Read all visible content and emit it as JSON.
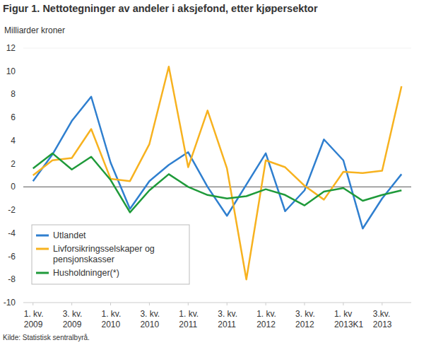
{
  "chart_data": {
    "type": "line",
    "title": "Figur 1. Nettotegninger av andeler i aksjefond, etter kjøpersektor",
    "y_label": "Milliarder kroner",
    "source": "Kilde: Statistisk sentralbyrå.",
    "categories": [
      "1. kv.\n2009",
      null,
      "3. kv.\n2009",
      null,
      "1. kv.\n2010",
      null,
      "3. kv.\n2010",
      null,
      "1. kv.\n2011",
      null,
      "3. kv.\n2011",
      null,
      "1. kv.\n2012",
      null,
      "3. kv.\n2012",
      null,
      "1. kv\n2013K1",
      null,
      "3.kv.\n2013",
      null
    ],
    "series": [
      {
        "name": "Utlandet",
        "color": "#2f7fcf",
        "values": [
          0.5,
          2.8,
          5.7,
          7.8,
          2.1,
          -1.9,
          0.5,
          1.9,
          3.0,
          0.0,
          -2.5,
          0.2,
          2.9,
          -2.1,
          -0.3,
          4.1,
          2.3,
          -3.6,
          -1.0,
          1.1
        ]
      },
      {
        "name": "Livforsikringsselskaper og\npensjonskasser",
        "color": "#f7b21f",
        "values": [
          1.0,
          2.3,
          2.5,
          5.0,
          0.7,
          0.5,
          3.7,
          10.4,
          1.7,
          6.6,
          1.6,
          -8.0,
          2.3,
          1.7,
          0.1,
          -1.1,
          1.3,
          1.2,
          1.4,
          8.7
        ]
      },
      {
        "name": "Husholdninger(*)",
        "color": "#1f9a3a",
        "values": [
          1.6,
          2.9,
          1.5,
          2.6,
          0.6,
          -2.2,
          -0.3,
          1.1,
          0.0,
          -0.7,
          -1.0,
          -0.8,
          -0.2,
          -0.7,
          -1.6,
          -0.4,
          -0.1,
          -1.2,
          -0.7,
          -0.3
        ]
      }
    ],
    "ylim": [
      -10,
      12
    ],
    "yticks": [
      -10,
      -8,
      -6,
      -4,
      -2,
      0,
      2,
      4,
      6,
      8,
      10,
      12
    ],
    "grid": false,
    "legend": "lower left"
  }
}
